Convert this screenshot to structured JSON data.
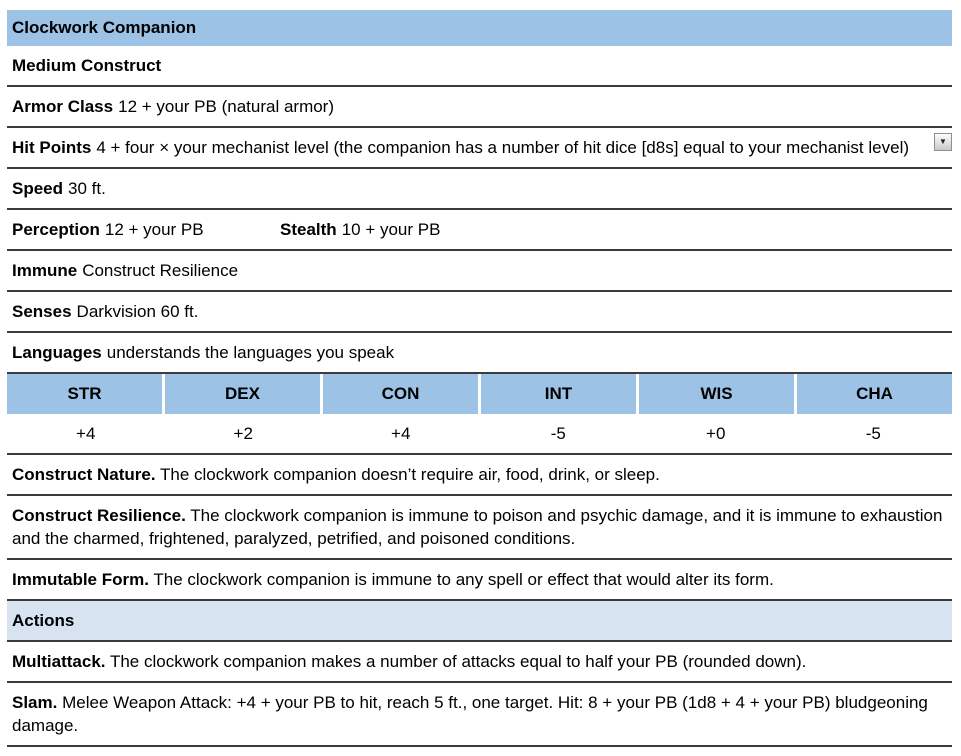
{
  "title": "Clockwork Companion",
  "subtitle": "Medium Construct",
  "attributes": {
    "armor_class": {
      "label": "Armor Class",
      "value": "12 + your PB (natural armor)"
    },
    "hit_points": {
      "label": "Hit Points",
      "value": "4 + four × your mechanist level (the companion has a number of hit dice [d8s] equal to your mechanist level)"
    },
    "speed": {
      "label": "Speed",
      "value": "30 ft."
    },
    "perception": {
      "label": "Perception",
      "value": "12 + your PB"
    },
    "stealth": {
      "label": "Stealth",
      "value": "10 + your PB"
    },
    "immune": {
      "label": "Immune",
      "value": "Construct Resilience"
    },
    "senses": {
      "label": "Senses",
      "value": "Darkvision 60 ft."
    },
    "languages": {
      "label": "Languages",
      "value": "understands the languages you speak"
    }
  },
  "ability_scores": {
    "columns": [
      {
        "name": "STR",
        "modifier": "+4"
      },
      {
        "name": "DEX",
        "modifier": "+2"
      },
      {
        "name": "CON",
        "modifier": "+4"
      },
      {
        "name": "INT",
        "modifier": "-5"
      },
      {
        "name": "WIS",
        "modifier": "+0"
      },
      {
        "name": "CHA",
        "modifier": "-5"
      }
    ]
  },
  "traits": [
    {
      "name": "Construct Nature.",
      "text": "The clockwork companion doesn’t require air, food, drink, or sleep."
    },
    {
      "name": "Construct Resilience.",
      "text": "The clockwork companion is immune to poison and psychic damage, and it is immune to exhaustion and the charmed, frightened, paralyzed, petrified, and poisoned conditions."
    },
    {
      "name": "Immutable Form.",
      "text": "The clockwork companion is immune to any spell or effect that would alter its form."
    }
  ],
  "actions_header": "Actions",
  "actions": [
    {
      "name": "Multiattack.",
      "text": "The clockwork companion makes a number of attacks equal to half your PB (rounded down)."
    },
    {
      "name": "Slam.",
      "text": "Melee Weapon Attack: +4 + your PB to hit, reach 5 ft., one target. Hit: 8 + your PB (1d8 + 4 + your PB) bludgeoning damage."
    }
  ],
  "icons": {
    "dropdown_caret": "▼"
  },
  "colors": {
    "header_blue": "#9cc2e5",
    "section_blue": "#d7e3f0",
    "border_dark": "#3b3b3b",
    "separator_white": "#ffffff"
  }
}
